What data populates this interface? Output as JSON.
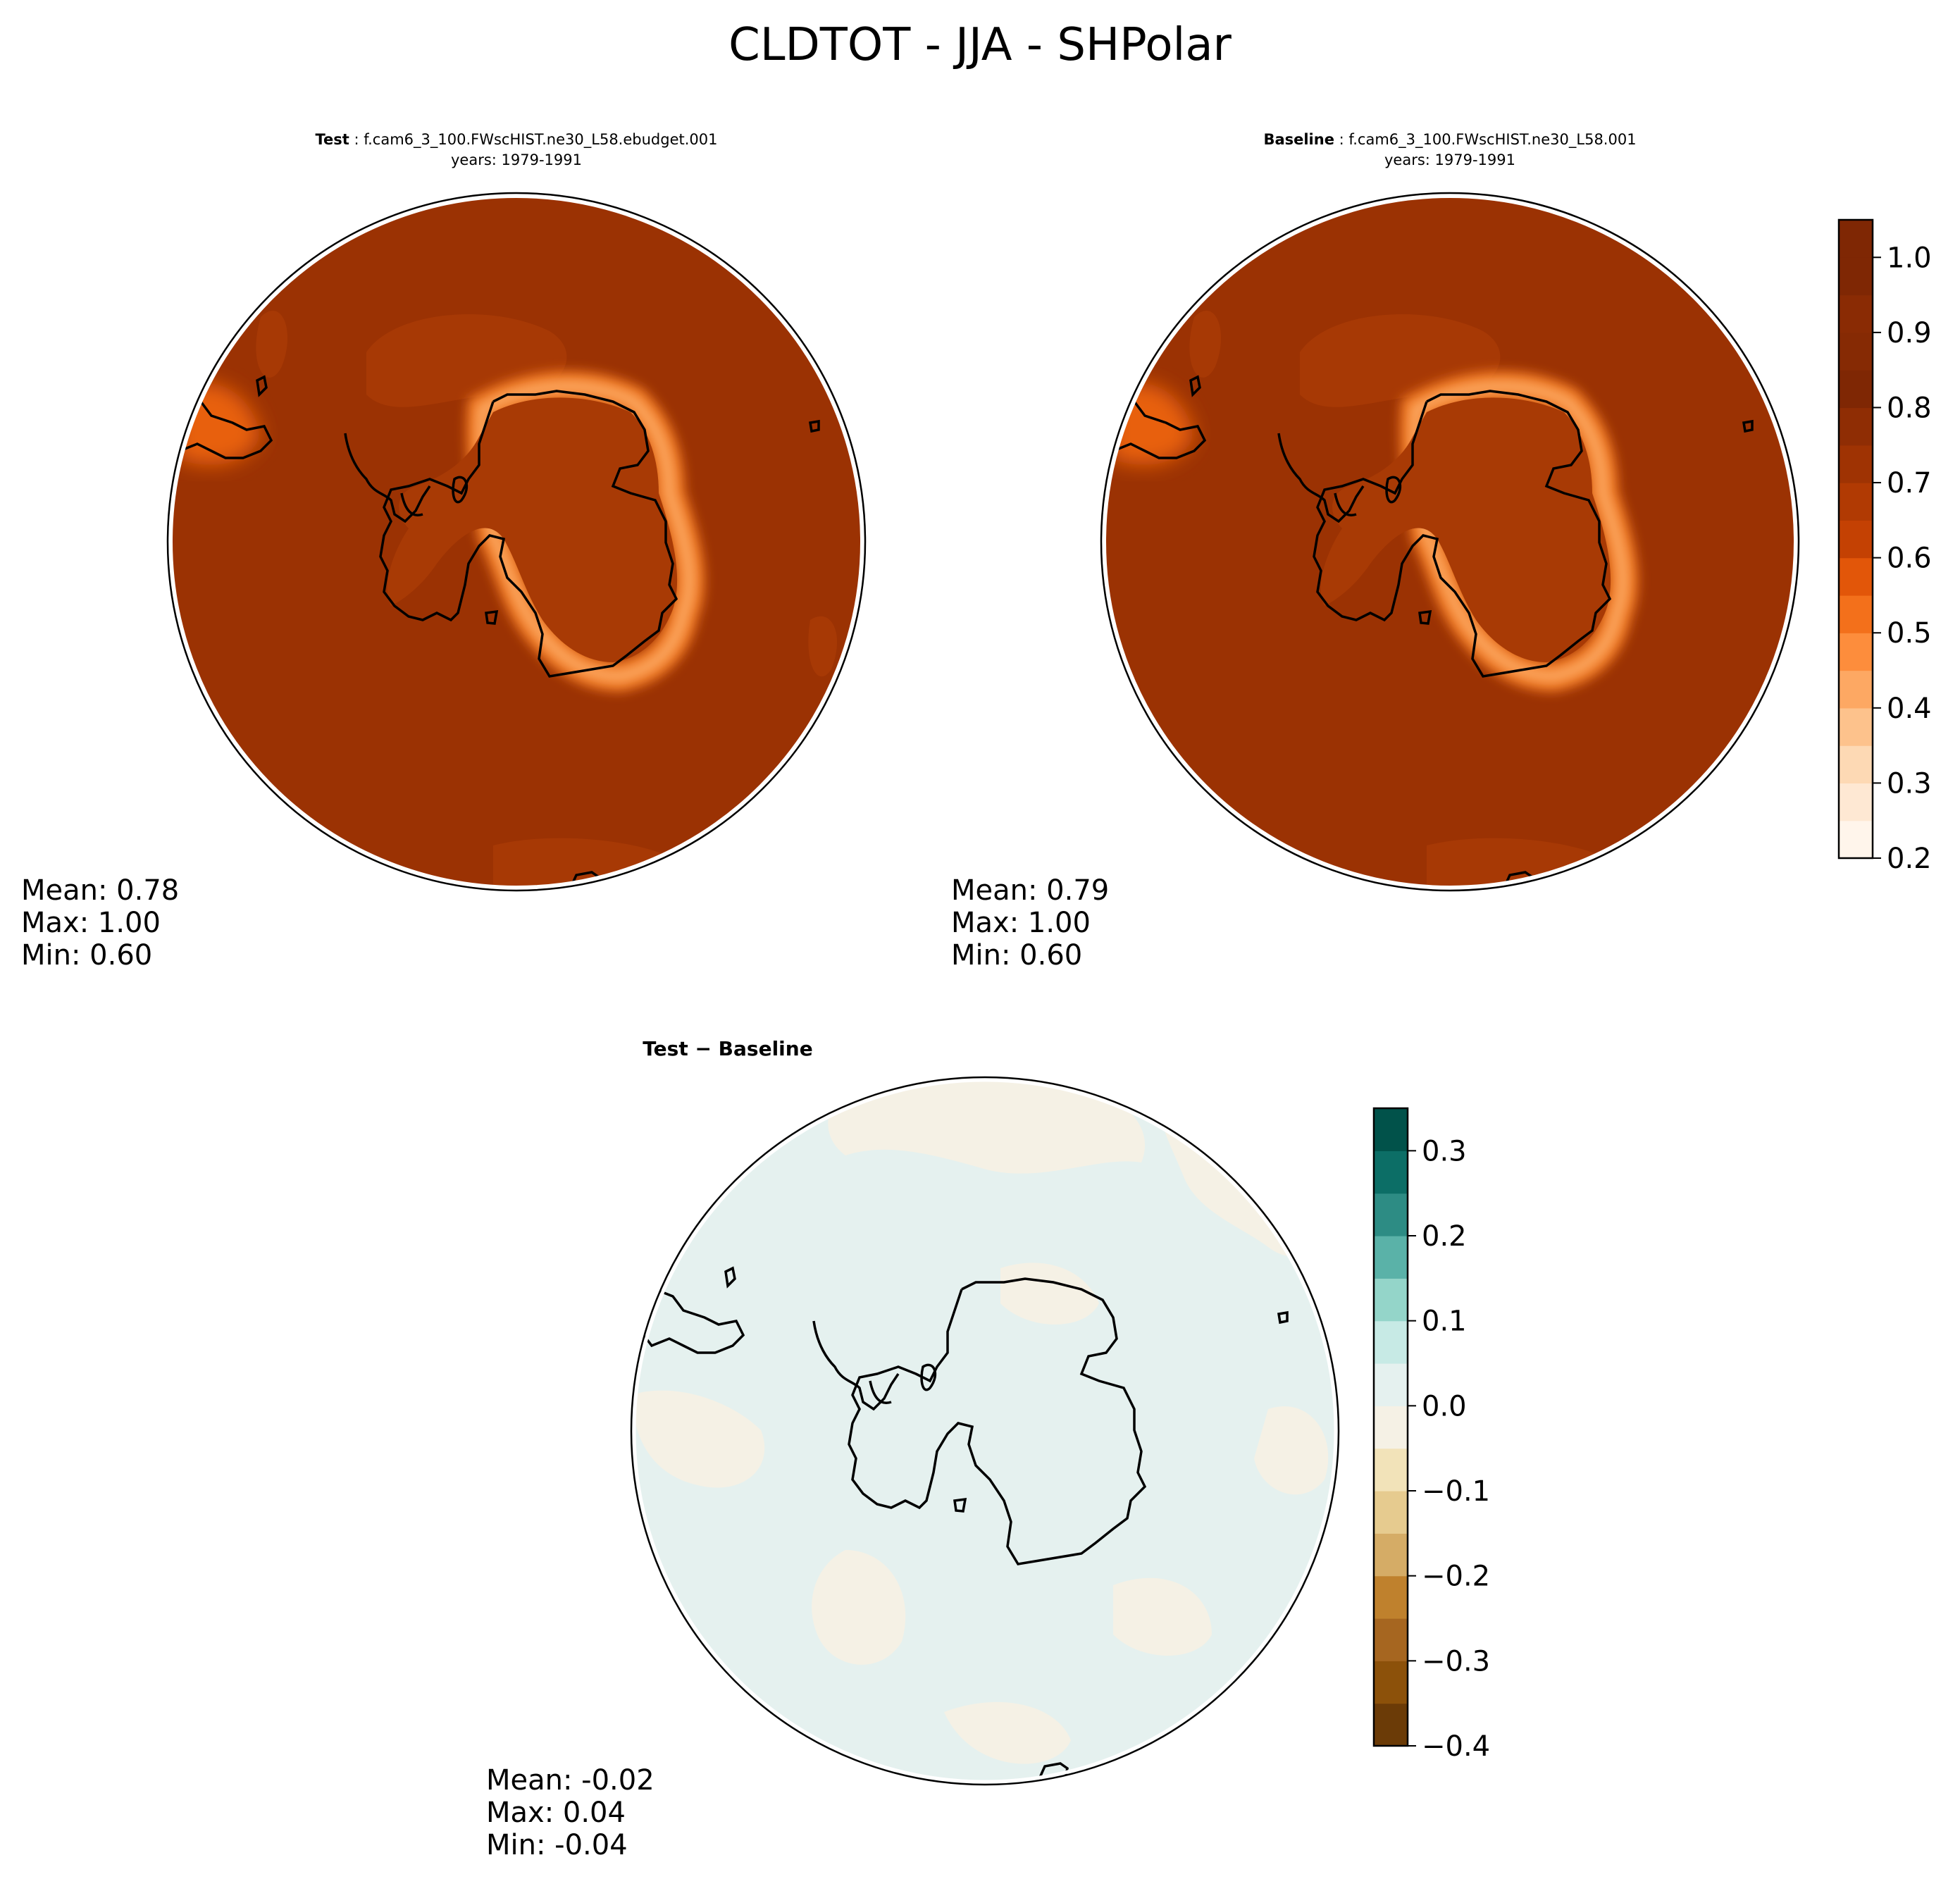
{
  "figure": {
    "title": "CLDTOT - JJA - SHPolar"
  },
  "panels": [
    {
      "id": "test",
      "title_bold": "Test",
      "title_case": " : f.cam6_3_100.FWscHIST.ne30_L58.ebudget.001",
      "years": "years: 1979-1991",
      "stats": {
        "mean": "Mean:  0.78",
        "max": "Max:  1.00",
        "min": "Min:  0.60"
      }
    },
    {
      "id": "baseline",
      "title_bold": "Baseline",
      "title_case": " : f.cam6_3_100.FWscHIST.ne30_L58.001",
      "years": "years: 1979-1991",
      "stats": {
        "mean": "Mean:  0.79",
        "max": "Max:  1.00",
        "min": "Min:  0.60"
      }
    },
    {
      "id": "difference",
      "title": "Test − Baseline",
      "stats": {
        "mean": "Mean: -0.02",
        "max": "Max:  0.04",
        "min": "Min: -0.04"
      }
    }
  ],
  "colorbars": {
    "fields": {
      "colormap": "Oranges",
      "range": [
        0.2,
        1.05
      ],
      "ticks": [
        {
          "v": 0.2,
          "label": "0.2"
        },
        {
          "v": 0.3,
          "label": "0.3"
        },
        {
          "v": 0.4,
          "label": "0.4"
        },
        {
          "v": 0.5,
          "label": "0.5"
        },
        {
          "v": 0.6,
          "label": "0.6"
        },
        {
          "v": 0.7,
          "label": "0.7"
        },
        {
          "v": 0.8,
          "label": "0.8"
        },
        {
          "v": 0.9,
          "label": "0.9"
        },
        {
          "v": 1.0,
          "label": "1.0"
        }
      ],
      "levels": [
        "#fff5eb",
        "#fee8d3",
        "#fdd9b4",
        "#fdc28c",
        "#fda863",
        "#fd8d3c",
        "#f3701b",
        "#e25609",
        "#c44103",
        "#b13a03",
        "#9f3303",
        "#8f2d04",
        "#7f2704",
        "#862a04",
        "#8a2b04",
        "#7f2704",
        "#7f2704"
      ]
    },
    "difference": {
      "colormap": "BrBG",
      "range": [
        -0.4,
        0.35
      ],
      "ticks": [
        {
          "v": -0.4,
          "label": "−0.4"
        },
        {
          "v": -0.3,
          "label": "−0.3"
        },
        {
          "v": -0.2,
          "label": "−0.2"
        },
        {
          "v": -0.1,
          "label": "−0.1"
        },
        {
          "v": 0.0,
          "label": "0.0"
        },
        {
          "v": 0.1,
          "label": "0.1"
        },
        {
          "v": 0.2,
          "label": "0.2"
        },
        {
          "v": 0.3,
          "label": "0.3"
        }
      ],
      "levels": [
        "#6b3b07",
        "#8c510a",
        "#a66620",
        "#bf812d",
        "#d5ac66",
        "#e6cb8f",
        "#f2e3b9",
        "#f5f1e5",
        "#e5f1ef",
        "#c7eae5",
        "#94d5c9",
        "#5ab2a8",
        "#2d8c84",
        "#0c6e66",
        "#01524a"
      ]
    }
  },
  "colors": {
    "land_outline": "#000000",
    "test_ocean": "#9b3203",
    "base_ocean": "#9b3203",
    "diff_neg": "#f5f1e5",
    "diff_pos": "#e5f1ef"
  }
}
